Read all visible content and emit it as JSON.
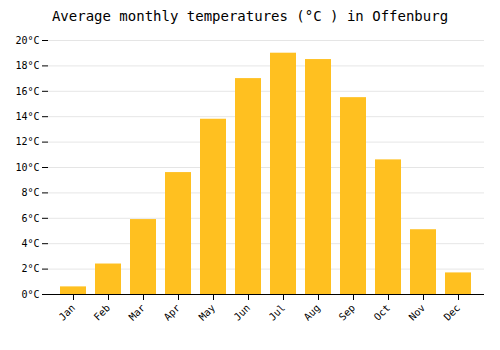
{
  "chart_data": {
    "type": "bar",
    "title": "Average monthly temperatures (°C ) in Offenburg",
    "categories": [
      "Jan",
      "Feb",
      "Mar",
      "Apr",
      "May",
      "Jun",
      "Jul",
      "Aug",
      "Sep",
      "Oct",
      "Nov",
      "Dec"
    ],
    "values": [
      0.6,
      2.4,
      5.9,
      9.6,
      13.8,
      17.0,
      19.0,
      18.5,
      15.5,
      10.6,
      5.1,
      1.7
    ],
    "color": "#FFC020",
    "ylim": [
      0,
      20
    ],
    "yticks": [
      {
        "value": 0,
        "label": "0°C"
      },
      {
        "value": 2,
        "label": "2°C"
      },
      {
        "value": 4,
        "label": "4°C"
      },
      {
        "value": 6,
        "label": "6°C"
      },
      {
        "value": 8,
        "label": "8°C"
      },
      {
        "value": 10,
        "label": "10°C"
      },
      {
        "value": 12,
        "label": "12°C"
      },
      {
        "value": 14,
        "label": "14°C"
      },
      {
        "value": 16,
        "label": "16°C"
      },
      {
        "value": 18,
        "label": "18°C"
      },
      {
        "value": 20,
        "label": "20°C"
      }
    ],
    "grid": true
  }
}
